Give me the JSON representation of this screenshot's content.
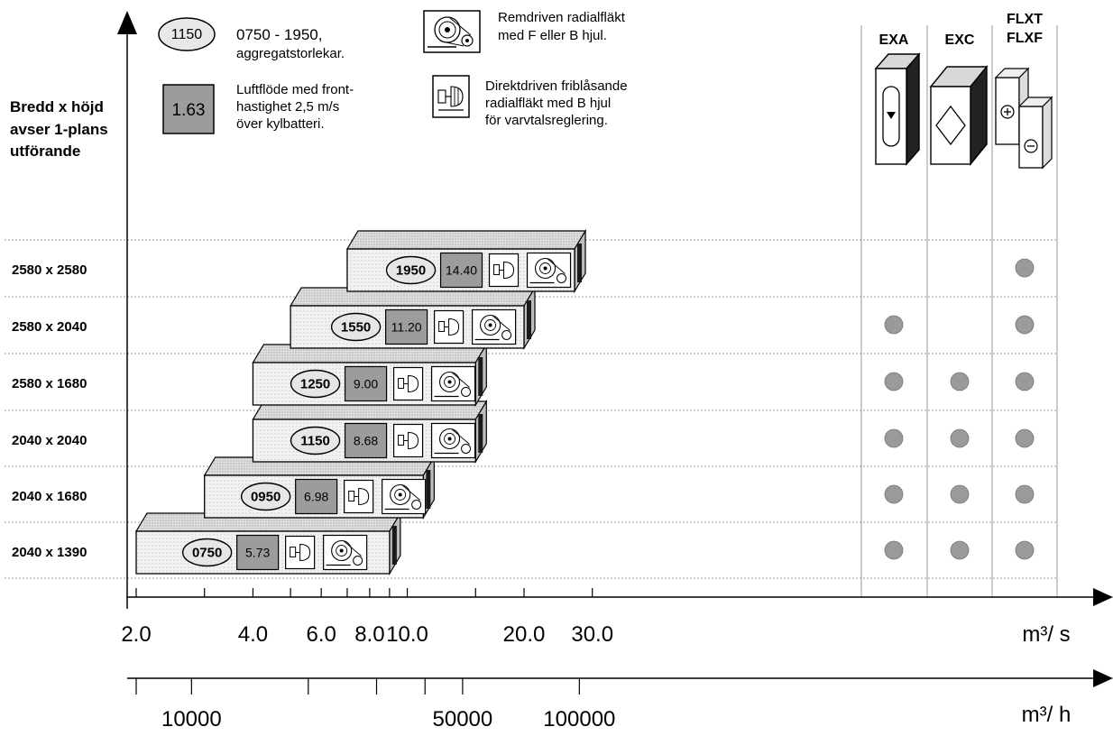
{
  "legend": {
    "size_code_sample": "1150",
    "size_range_line1": "0750 - 1950,",
    "size_range_line2": "aggregatstorlekar.",
    "flow_sample": "1.63",
    "flow_line1": "Luftflöde med front-",
    "flow_line2": "hastighet 2,5 m/s",
    "flow_line3": "över kylbatteri.",
    "belt_line1": "Remdriven radialfläkt",
    "belt_line2": "med F eller B hjul.",
    "direct_line1": "Direktdriven friblåsande",
    "direct_line2": "radialfläkt med B hjul",
    "direct_line3": "för varvtalsreglering.",
    "icon_belt": "belt-driven-fan-icon",
    "icon_direct": "direct-driven-fan-icon"
  },
  "yaxis": {
    "title_line1": "Bredd x höjd",
    "title_line2": "avser 1-plans",
    "title_line3": "utförande"
  },
  "columns": {
    "exa": "EXA",
    "exc": "EXC",
    "flxt": "FLXT",
    "flxf": "FLXF"
  },
  "xaxis_top": {
    "unit": "m³/ s",
    "ticks": [
      "2.0",
      "4.0",
      "6.0",
      "8.0",
      "10.0",
      "20.0",
      "30.0"
    ]
  },
  "xaxis_bottom": {
    "unit": "m³/ h",
    "ticks": [
      "10000",
      "50000",
      "100000"
    ]
  },
  "colors": {
    "box_face": "#efefef",
    "box_top": "#dcdcdc",
    "box_side": "#bdbdbd",
    "flow_fill": "#9c9c9c",
    "dot": "#9a9a9a",
    "grid": "#9a9a9a"
  },
  "chart_data": {
    "type": "bar",
    "title": "",
    "xlabel": "m³/ s",
    "x_scale": "log",
    "xlim": [
      2.0,
      40.0
    ],
    "secondary_xlabel": "m³/ h",
    "categories": [
      "2580 x 2580",
      "2580 x 2040",
      "2580 x 1680",
      "2040 x 2040",
      "2040 x 1680",
      "2040 x 1390"
    ],
    "rows": [
      {
        "dimension": "2580 x 2580",
        "size": "1950",
        "flow": "14.40",
        "range_m3s": [
          7.0,
          27.0
        ],
        "EXA": false,
        "EXC": false,
        "FLXT_FLXF": true
      },
      {
        "dimension": "2580 x 2040",
        "size": "1550",
        "flow": "11.20",
        "range_m3s": [
          5.0,
          20.0
        ],
        "EXA": true,
        "EXC": false,
        "FLXT_FLXF": true
      },
      {
        "dimension": "2580 x 1680",
        "size": "1250",
        "flow": "9.00",
        "range_m3s": [
          4.0,
          15.0
        ],
        "EXA": true,
        "EXC": true,
        "FLXT_FLXF": true
      },
      {
        "dimension": "2040 x 2040",
        "size": "1150",
        "flow": "8.68",
        "range_m3s": [
          4.0,
          15.0
        ],
        "EXA": true,
        "EXC": true,
        "FLXT_FLXF": true
      },
      {
        "dimension": "2040 x 1680",
        "size": "0950",
        "flow": "6.98",
        "range_m3s": [
          3.0,
          11.0
        ],
        "EXA": true,
        "EXC": true,
        "FLXT_FLXF": true
      },
      {
        "dimension": "2040 x 1390",
        "size": "0750",
        "flow": "5.73",
        "range_m3s": [
          2.0,
          9.0
        ],
        "EXA": true,
        "EXC": true,
        "FLXT_FLXF": true
      }
    ]
  }
}
